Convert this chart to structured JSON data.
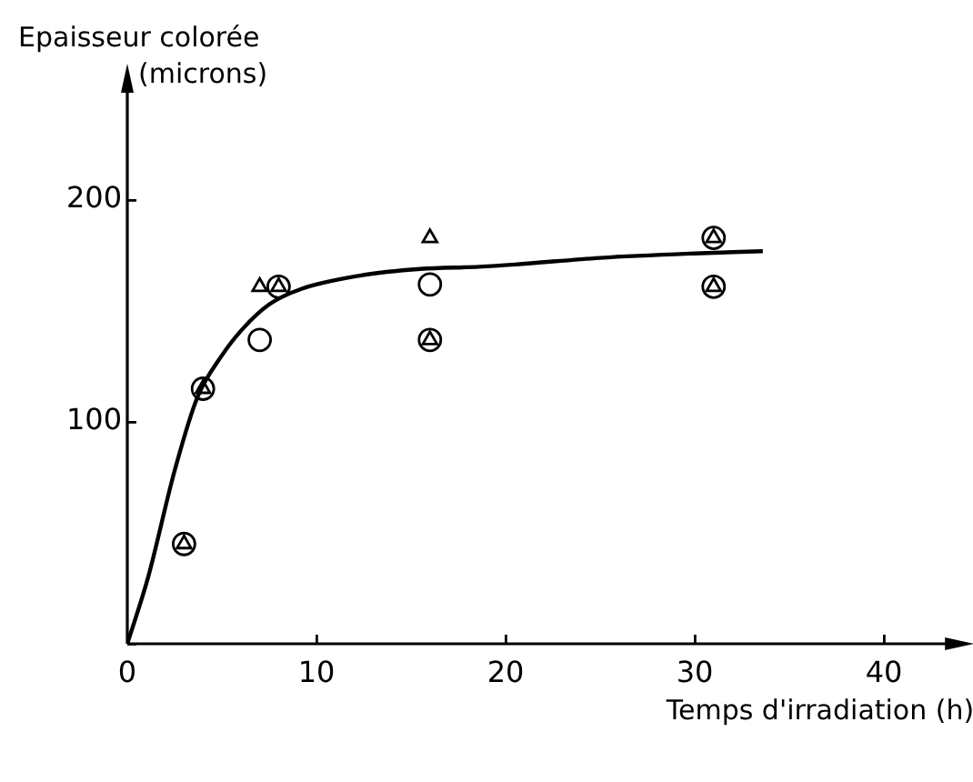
{
  "chart_data": {
    "type": "scatter",
    "xlabel": "Temps d'irradiation (h)",
    "ylabel": "Epaisseur colorée\n(microns)",
    "xlim": [
      0,
      44
    ],
    "xticks": [
      0,
      10,
      20,
      30,
      40
    ],
    "ylim": [
      0,
      255
    ],
    "yticks": [
      {
        "value": 0,
        "label": null
      },
      100,
      200
    ],
    "grid": false,
    "legend": false,
    "series": [
      {
        "type": "scatter",
        "marker": "circle",
        "color": "#000000",
        "x": [
          3,
          4,
          7,
          8,
          16,
          16,
          31,
          31
        ],
        "values": [
          45,
          115,
          137,
          161,
          162,
          137,
          183,
          161
        ]
      },
      {
        "type": "scatter",
        "marker": "triangle",
        "color": "#000000",
        "x": [
          3,
          4,
          7,
          8,
          16,
          16,
          31,
          31
        ],
        "values": [
          45,
          115,
          161,
          161,
          183,
          137,
          183,
          161
        ]
      },
      {
        "type": "line",
        "marker": "none",
        "color": "#000000",
        "x": [
          0,
          1.1,
          2.5,
          3.7,
          5,
          6.1,
          7.5,
          9.2,
          12.3,
          15.5,
          18.6,
          20.5,
          25,
          30,
          33.6
        ],
        "values": [
          0,
          30,
          78,
          111,
          130,
          142,
          153,
          160,
          166,
          169,
          170,
          171,
          174,
          176,
          177
        ]
      }
    ]
  }
}
